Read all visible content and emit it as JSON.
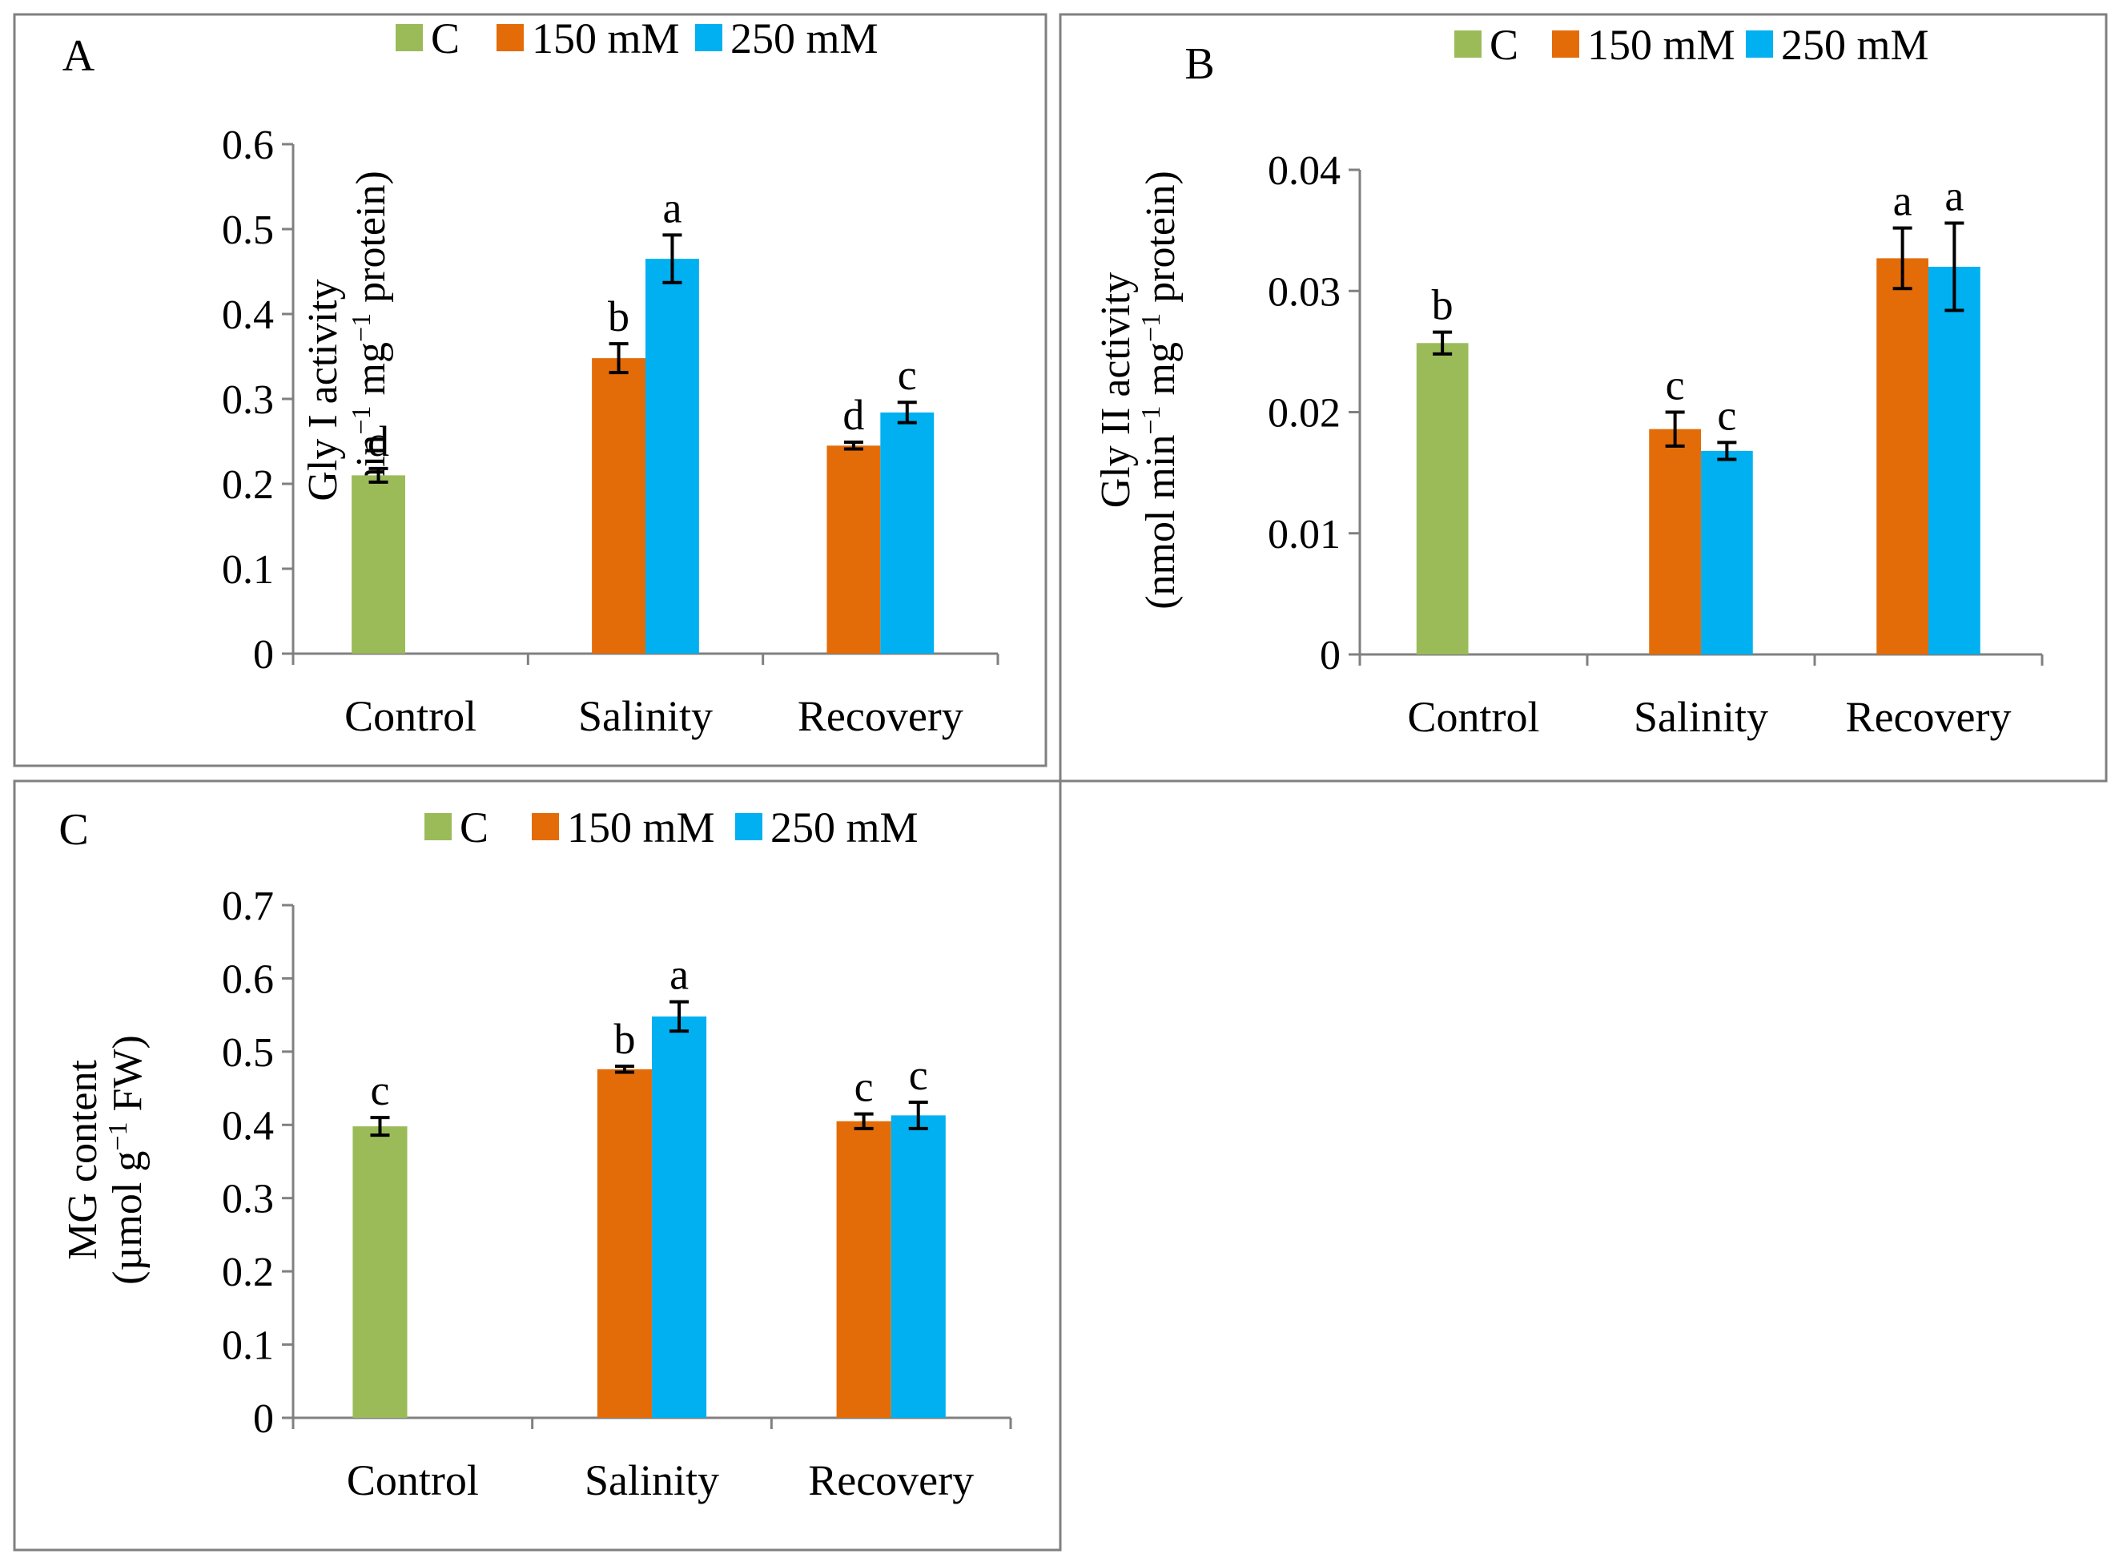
{
  "colors": {
    "C": "#9BBB59",
    "150 mM": "#E36C09",
    "250 mM": "#00B0F0"
  },
  "chart_data": [
    {
      "type": "bar",
      "panel_label": "A",
      "ylabel_line1": "Gly I activity",
      "ylabel_line2_parts": [
        "(nmol min",
        "−1",
        " mg",
        "−1",
        " protein)"
      ],
      "categories": [
        "Control",
        "Salinity",
        "Recovery"
      ],
      "legend": [
        "C",
        "150 mM",
        "250 mM"
      ],
      "ylim": [
        0,
        0.6
      ],
      "yticks": [
        0,
        0.1,
        0.2,
        0.3,
        0.4,
        0.5,
        0.6
      ],
      "ytick_labels": [
        "0",
        "0.1",
        "0.2",
        "0.3",
        "0.4",
        "0.5",
        "0.6"
      ],
      "bars": [
        {
          "category": "Control",
          "series": "C",
          "value": 0.21,
          "error": 0.008,
          "letter": "d"
        },
        {
          "category": "Salinity",
          "series": "150 mM",
          "value": 0.348,
          "error": 0.017,
          "letter": "b"
        },
        {
          "category": "Salinity",
          "series": "250 mM",
          "value": 0.465,
          "error": 0.028,
          "letter": "a"
        },
        {
          "category": "Recovery",
          "series": "150 mM",
          "value": 0.245,
          "error": 0.004,
          "letter": "d"
        },
        {
          "category": "Recovery",
          "series": "250 mM",
          "value": 0.284,
          "error": 0.012,
          "letter": "c"
        }
      ]
    },
    {
      "type": "bar",
      "panel_label": "B",
      "ylabel_line1": "Gly II activity",
      "ylabel_line2_parts": [
        "(nmol min",
        "−1",
        " mg",
        "−1",
        " protein)"
      ],
      "categories": [
        "Control",
        "Salinity",
        "Recovery"
      ],
      "legend": [
        "C",
        "150 mM",
        "250 mM"
      ],
      "ylim": [
        0,
        0.04
      ],
      "yticks": [
        0,
        0.01,
        0.02,
        0.03,
        0.04
      ],
      "ytick_labels": [
        "0",
        "0.01",
        "0.02",
        "0.03",
        "0.04"
      ],
      "bars": [
        {
          "category": "Control",
          "series": "C",
          "value": 0.0257,
          "error": 0.0009,
          "letter": "b"
        },
        {
          "category": "Salinity",
          "series": "150 mM",
          "value": 0.0186,
          "error": 0.0014,
          "letter": "c"
        },
        {
          "category": "Salinity",
          "series": "250 mM",
          "value": 0.0168,
          "error": 0.0007,
          "letter": "c"
        },
        {
          "category": "Recovery",
          "series": "150 mM",
          "value": 0.0327,
          "error": 0.0025,
          "letter": "a"
        },
        {
          "category": "Recovery",
          "series": "250 mM",
          "value": 0.032,
          "error": 0.0036,
          "letter": "a"
        }
      ]
    },
    {
      "type": "bar",
      "panel_label": "C",
      "ylabel_line1": "MG content",
      "ylabel_line2_parts": [
        "(µmol g",
        "−1",
        " FW)"
      ],
      "categories": [
        "Control",
        "Salinity",
        "Recovery"
      ],
      "legend": [
        "C",
        "150 mM",
        "250 mM"
      ],
      "ylim": [
        0,
        0.7
      ],
      "yticks": [
        0,
        0.1,
        0.2,
        0.3,
        0.4,
        0.5,
        0.6,
        0.7
      ],
      "ytick_labels": [
        "0",
        "0.1",
        "0.2",
        "0.3",
        "0.4",
        "0.5",
        "0.6",
        "0.7"
      ],
      "bars": [
        {
          "category": "Control",
          "series": "C",
          "value": 0.398,
          "error": 0.012,
          "letter": "c"
        },
        {
          "category": "Salinity",
          "series": "150 mM",
          "value": 0.476,
          "error": 0.004,
          "letter": "b"
        },
        {
          "category": "Salinity",
          "series": "250 mM",
          "value": 0.548,
          "error": 0.02,
          "letter": "a"
        },
        {
          "category": "Recovery",
          "series": "150 mM",
          "value": 0.405,
          "error": 0.01,
          "letter": "c"
        },
        {
          "category": "Recovery",
          "series": "250 mM",
          "value": 0.413,
          "error": 0.018,
          "letter": "c"
        }
      ]
    }
  ]
}
